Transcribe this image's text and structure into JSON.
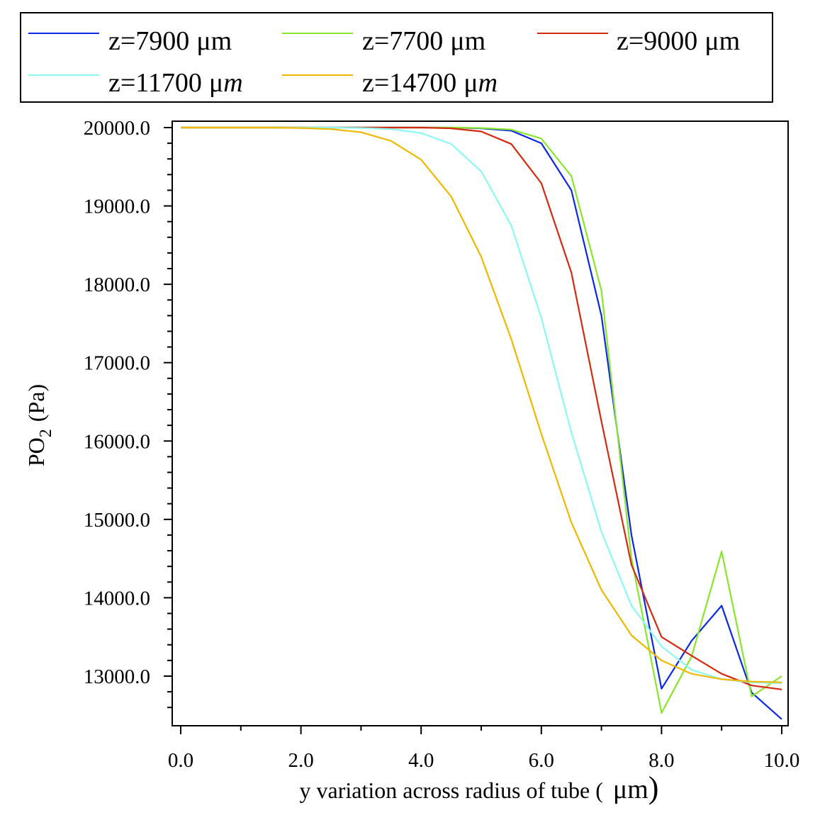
{
  "chart_data": {
    "type": "line",
    "xlabel": "y variation across radius of tube (",
    "xlabel_unit": "μm",
    "xlabel_close": ")",
    "ylabel": "PO",
    "ylabel_sub": "2",
    "ylabel_unit": "(Pa)",
    "xlim": [
      0,
      10
    ],
    "ylim": [
      12450,
      20070
    ],
    "x_ticks": [
      0,
      2,
      4,
      6,
      8,
      10
    ],
    "x_tick_labels": [
      "0.0",
      "2.0",
      "4.0",
      "6.0",
      "8.0",
      "10.0"
    ],
    "y_ticks": [
      13000,
      14000,
      15000,
      16000,
      17000,
      18000,
      19000,
      20000
    ],
    "y_tick_labels": [
      "13000.0",
      "14000.0",
      "15000.0",
      "16000.0",
      "17000.0",
      "18000.0",
      "19000.0",
      "20000.0"
    ],
    "grid": false,
    "legend_position": "top, outside plot",
    "x": [
      0,
      0.5,
      1,
      1.5,
      2,
      2.5,
      3,
      3.5,
      4,
      4.5,
      5,
      5.5,
      6,
      6.5,
      7,
      7.5,
      8,
      8.5,
      9,
      9.5,
      10
    ],
    "series": [
      {
        "name": "z=7900 μm",
        "color": "#0a28e6",
        "values": [
          20000,
          20000,
          20000,
          20000,
          20000,
          20000,
          20000,
          20000,
          20000,
          20000,
          19990,
          19960,
          19800,
          19200,
          17600,
          14800,
          12840,
          13450,
          13900,
          12790,
          12450
        ]
      },
      {
        "name": "z=7700 μm",
        "color": "#8ae62a",
        "values": [
          20000,
          20000,
          20000,
          20000,
          20000,
          20000,
          20000,
          20000,
          20000,
          20000,
          19995,
          19975,
          19860,
          19380,
          17920,
          14500,
          12530,
          13250,
          14590,
          12740,
          13000
        ]
      },
      {
        "name": "z=9000 μm",
        "color": "#d42a10",
        "values": [
          20000,
          20000,
          20000,
          20000,
          20000,
          20000,
          20000,
          20000,
          20000,
          19990,
          19950,
          19790,
          19290,
          18150,
          16250,
          14420,
          13500,
          13260,
          13030,
          12880,
          12830
        ]
      },
      {
        "name": "z=11700 μm",
        "color": "#8cf8f4",
        "values": [
          20000,
          20000,
          20000,
          20000,
          20000,
          20000,
          19995,
          19980,
          19930,
          19790,
          19440,
          18750,
          17570,
          16110,
          14840,
          13900,
          13380,
          13080,
          12960,
          12920,
          12910
        ]
      },
      {
        "name": "z=14700 μm",
        "color": "#f0b800",
        "values": [
          20000,
          20000,
          20000,
          20000,
          19995,
          19980,
          19940,
          19830,
          19590,
          19120,
          18350,
          17300,
          16090,
          14960,
          14100,
          13520,
          13200,
          13030,
          12960,
          12930,
          12920
        ]
      }
    ]
  },
  "legend": {
    "row1": [
      {
        "label": "z=7900",
        "unit": "μm",
        "color": "#0a28e6"
      },
      {
        "label": "z=7700",
        "unit": "μm",
        "color": "#8ae62a"
      },
      {
        "label": "z=9000",
        "unit": "μm",
        "color": "#d42a10"
      }
    ],
    "row2": [
      {
        "label": "z=11700",
        "unit_mu": "μ",
        "unit_m": "m",
        "color": "#8cf8f4"
      },
      {
        "label": "z=14700",
        "unit_mu": "μ",
        "unit_m": "m",
        "color": "#f0b800"
      }
    ]
  }
}
